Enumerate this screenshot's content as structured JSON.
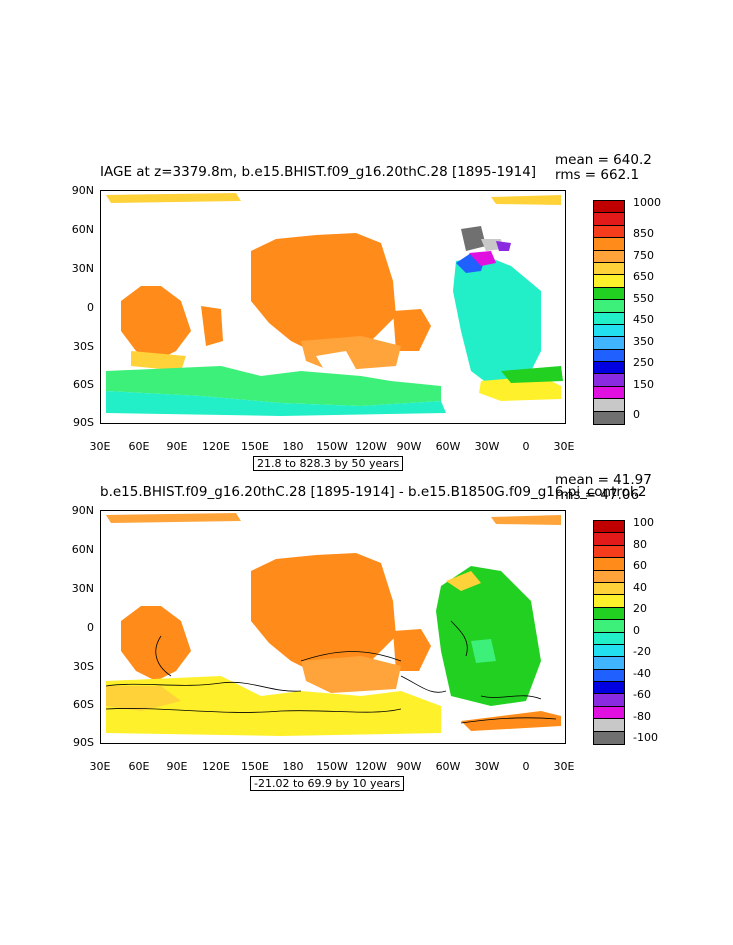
{
  "panels": [
    {
      "title": "IAGE at z=3379.8m, b.e15.BHIST.f09_g16.20thC.28 [1895-1914]",
      "mean": "mean = 640.2",
      "rms": "rms = 662.1",
      "contour_info": "21.8 to 828.3 by 50 years",
      "colorbar_labels": [
        "1000",
        "850",
        "750",
        "650",
        "550",
        "450",
        "350",
        "250",
        "150",
        "0"
      ],
      "colors": [
        "#c00000",
        "#e21a1a",
        "#f53c1c",
        "#ff8c1a",
        "#ffa43a",
        "#ffd23a",
        "#fff02c",
        "#22d022",
        "#3cf07a",
        "#22eec8",
        "#22e0f0",
        "#40b4ff",
        "#2060ff",
        "#0000e0",
        "#8a2be2",
        "#e010e0",
        "#c8c8c8",
        "#707070"
      ]
    },
    {
      "title": "b.e15.BHIST.f09_g16.20thC.28 [1895-1914] - b.e15.B1850G.f09_g16.pi_control.2",
      "mean": "mean = 41.97",
      "rms": "rms = 47.06",
      "contour_info": "-21.02 to 69.9 by 10 years",
      "colorbar_labels": [
        "100",
        "80",
        "60",
        "40",
        "20",
        "0",
        "-20",
        "-40",
        "-60",
        "-80",
        "-100"
      ],
      "colors": [
        "#c00000",
        "#e21a1a",
        "#f53c1c",
        "#ff8c1a",
        "#ffa43a",
        "#ffd23a",
        "#fff02c",
        "#22d022",
        "#3cf07a",
        "#22eec8",
        "#22e0f0",
        "#40b4ff",
        "#2060ff",
        "#0000e0",
        "#8a2be2",
        "#e010e0",
        "#c8c8c8",
        "#707070"
      ]
    }
  ],
  "axes": {
    "lat_labels": [
      "90N",
      "60N",
      "30N",
      "0",
      "30S",
      "60S",
      "90S"
    ],
    "lon_labels": [
      "30E",
      "60E",
      "90E",
      "120E",
      "150E",
      "180",
      "150W",
      "120W",
      "90W",
      "60W",
      "30W",
      "0",
      "30E"
    ]
  }
}
